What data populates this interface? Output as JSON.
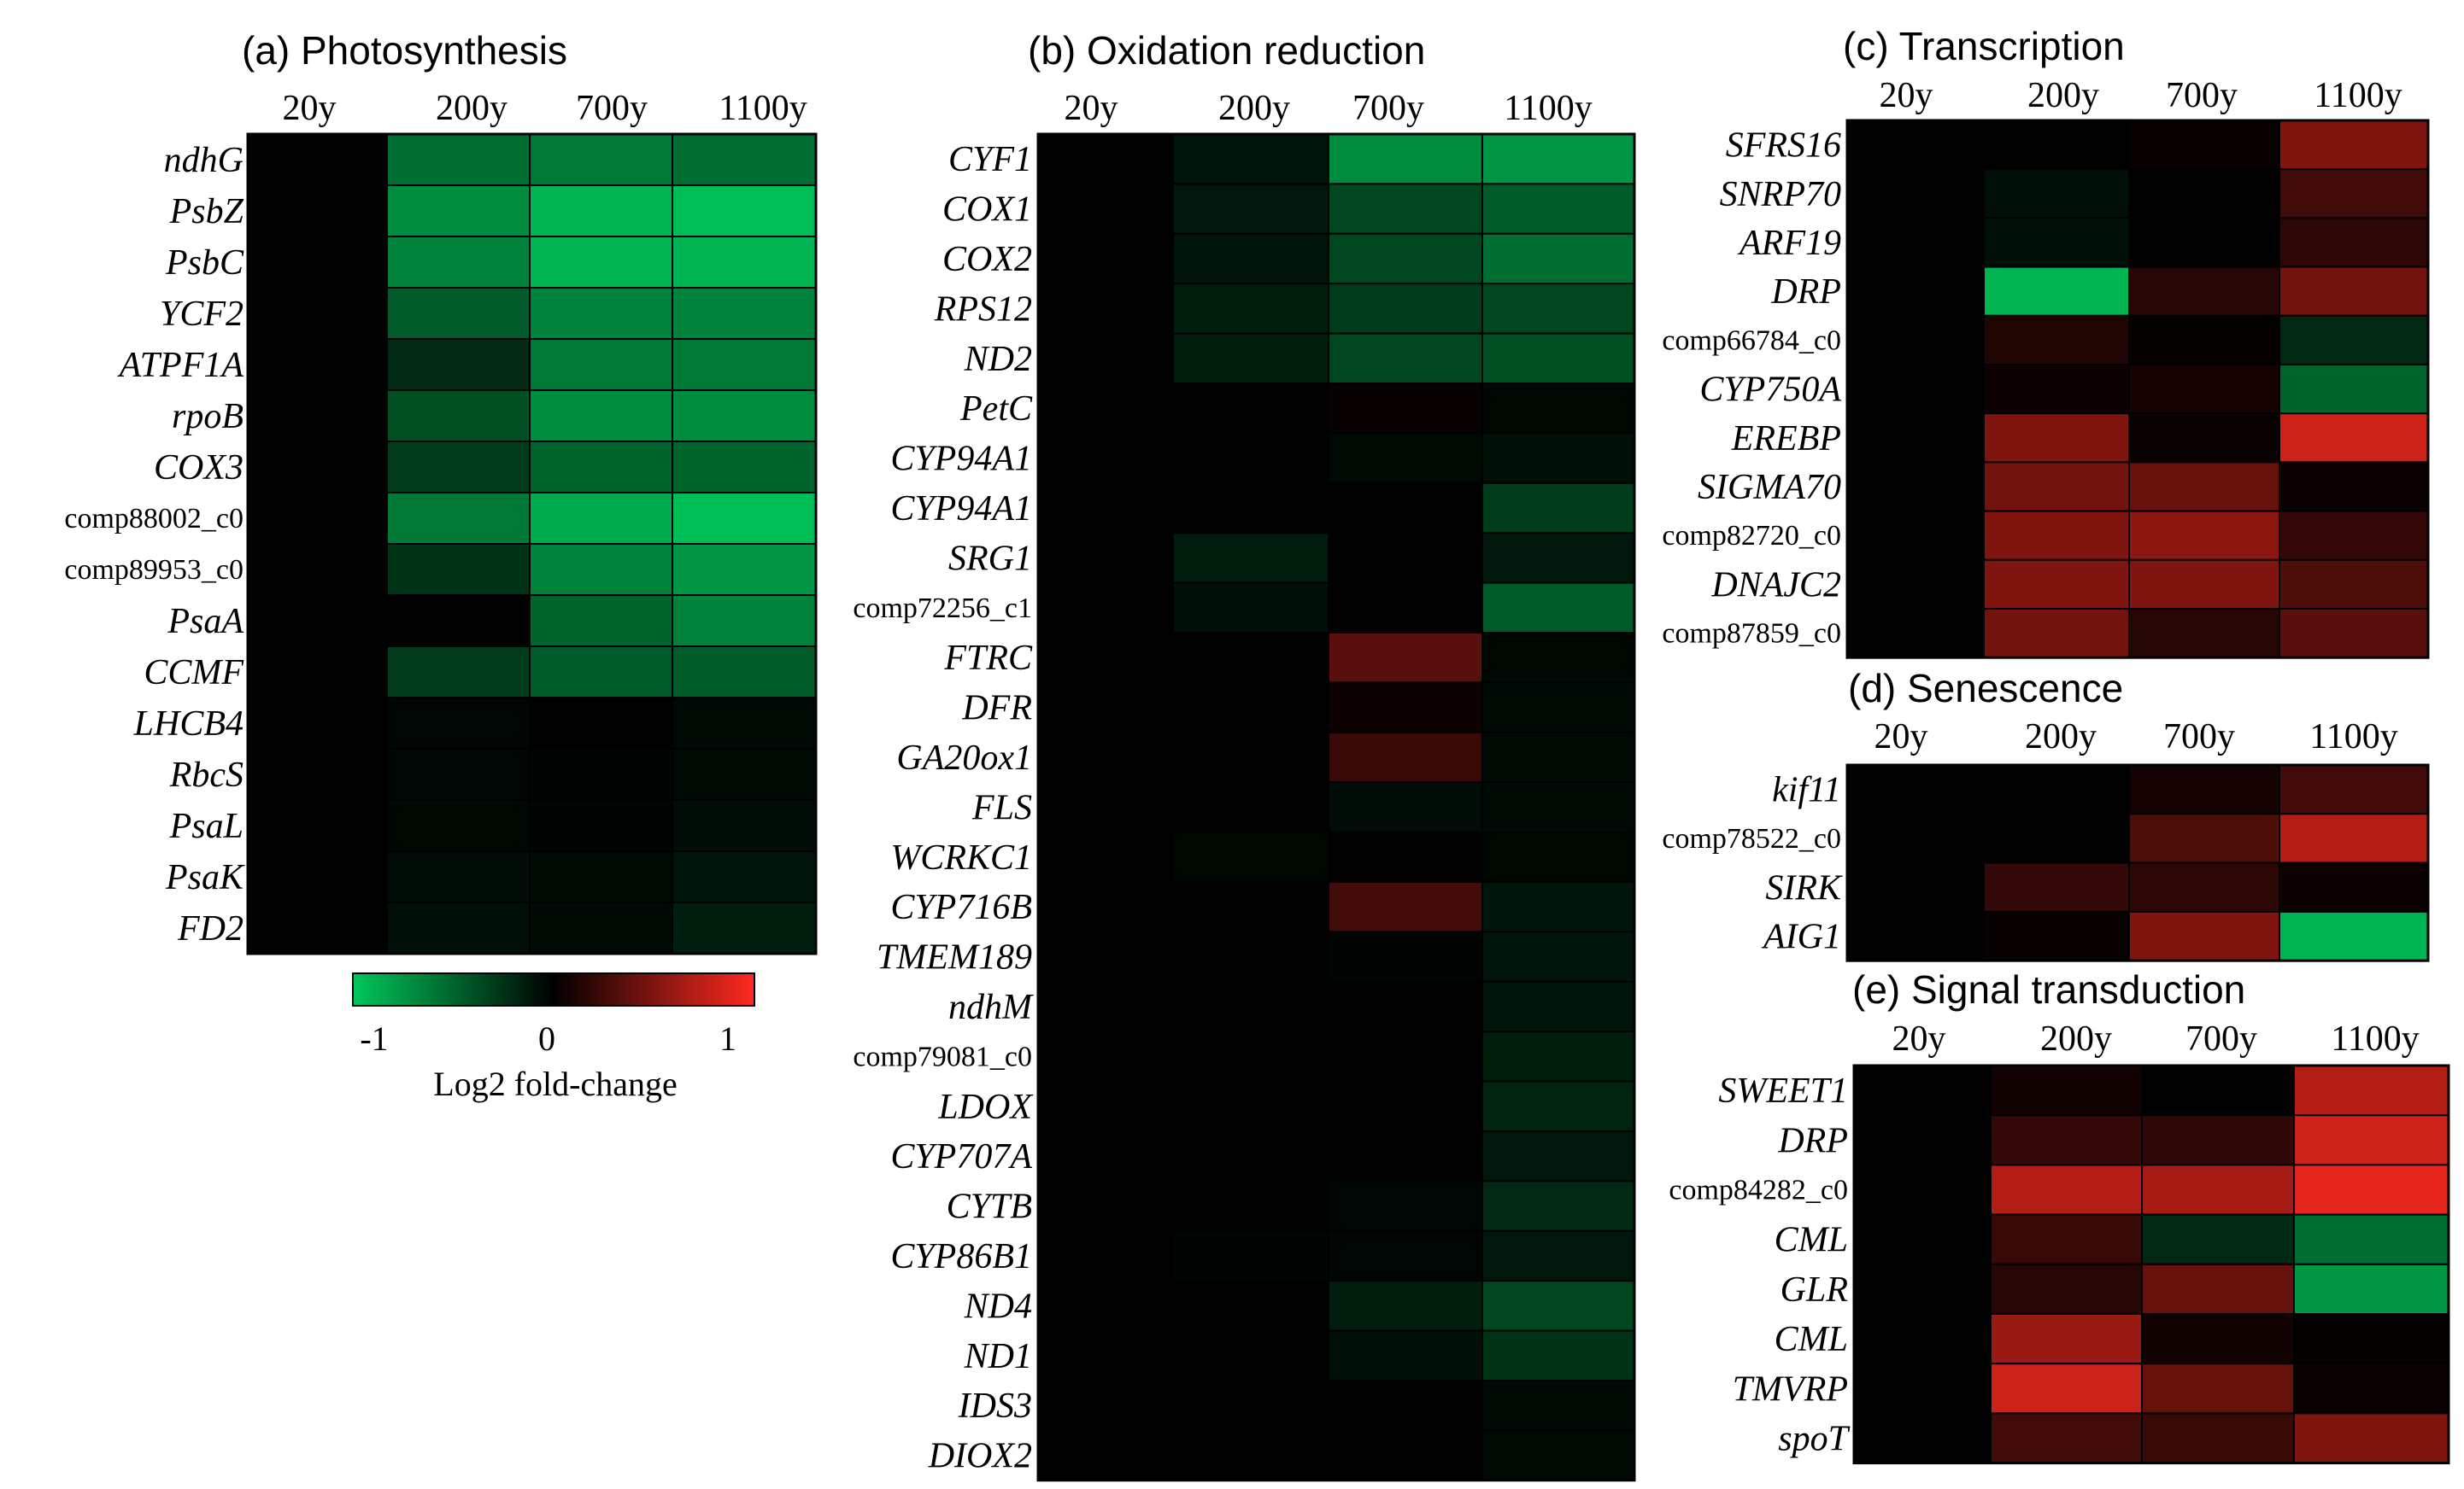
{
  "chart_data": [
    {
      "type": "heatmap",
      "title": "(a) Photosynthesis",
      "columns": [
        "20y",
        "200y",
        "700y",
        "1100y"
      ],
      "rows": [
        "ndhG",
        "PsbZ",
        "PsbC",
        "YCF2",
        "ATPF1A",
        "rpoB",
        "COX3",
        "comp88002_c0",
        "comp89953_c0",
        "PsaA",
        "CCMF",
        "LHCB4",
        "RbcS",
        "PsaL",
        "PsaK",
        "FD2"
      ],
      "values": [
        [
          0,
          -0.55,
          -0.6,
          -0.55
        ],
        [
          0,
          -0.7,
          -0.9,
          -0.95
        ],
        [
          0,
          -0.65,
          -0.9,
          -0.9
        ],
        [
          0,
          -0.45,
          -0.65,
          -0.65
        ],
        [
          0,
          -0.2,
          -0.6,
          -0.6
        ],
        [
          0,
          -0.4,
          -0.7,
          -0.7
        ],
        [
          0,
          -0.3,
          -0.5,
          -0.5
        ],
        [
          0,
          -0.6,
          -0.85,
          -0.95
        ],
        [
          0,
          -0.25,
          -0.65,
          -0.75
        ],
        [
          0,
          0,
          -0.5,
          -0.65
        ],
        [
          0,
          -0.3,
          -0.45,
          -0.45
        ],
        [
          0,
          -0.03,
          0,
          -0.05
        ],
        [
          0,
          -0.03,
          -0.02,
          -0.05
        ],
        [
          0,
          -0.04,
          -0.02,
          -0.06
        ],
        [
          0,
          -0.06,
          -0.05,
          -0.1
        ],
        [
          0,
          -0.08,
          -0.05,
          -0.15
        ]
      ]
    },
    {
      "type": "heatmap",
      "title": "(b) Oxidation reduction",
      "columns": [
        "20y",
        "200y",
        "700y",
        "1100y"
      ],
      "rows": [
        "CYF1",
        "COX1",
        "COX2",
        "RPS12",
        "ND2",
        "PetC",
        "CYP94A1",
        "CYP94A1",
        "SRG1",
        "comp72256_c1",
        "FTRC",
        "DFR",
        "GA20ox1",
        "FLS",
        "WCRKC1",
        "CYP716B",
        "TMEM189",
        "ndhM",
        "comp79081_c0",
        "LDOX",
        "CYP707A",
        "CYTB",
        "CYP86B1",
        "ND4",
        "ND1",
        "IDS3",
        "DIOX2"
      ],
      "values": [
        [
          0,
          -0.1,
          -0.7,
          -0.75
        ],
        [
          0,
          -0.12,
          -0.35,
          -0.45
        ],
        [
          0,
          -0.1,
          -0.35,
          -0.55
        ],
        [
          0,
          -0.15,
          -0.3,
          -0.35
        ],
        [
          0,
          -0.15,
          -0.35,
          -0.4
        ],
        [
          0,
          0,
          0.03,
          -0.04
        ],
        [
          0,
          0,
          -0.05,
          -0.08
        ],
        [
          0,
          0,
          0,
          -0.3
        ],
        [
          0,
          -0.15,
          0,
          -0.12
        ],
        [
          0,
          -0.08,
          0,
          -0.45
        ],
        [
          0,
          0,
          0.35,
          -0.04
        ],
        [
          0,
          0,
          0.05,
          -0.05
        ],
        [
          0,
          0,
          0.22,
          -0.05
        ],
        [
          0,
          0,
          -0.06,
          -0.05
        ],
        [
          0,
          -0.04,
          0,
          -0.04
        ],
        [
          0,
          0,
          0.25,
          -0.1
        ],
        [
          0,
          0,
          -0.02,
          -0.1
        ],
        [
          0,
          0,
          0,
          -0.1
        ],
        [
          0,
          0,
          0,
          -0.15
        ],
        [
          0,
          0,
          0,
          -0.18
        ],
        [
          0,
          0,
          0,
          -0.12
        ],
        [
          0,
          0,
          -0.03,
          -0.2
        ],
        [
          0,
          -0.02,
          -0.03,
          -0.12
        ],
        [
          0,
          0,
          -0.15,
          -0.35
        ],
        [
          0,
          0,
          -0.08,
          -0.25
        ],
        [
          0,
          0,
          0,
          -0.05
        ],
        [
          0,
          0,
          0,
          -0.05
        ]
      ]
    },
    {
      "type": "heatmap",
      "title": "(c) Transcription",
      "columns": [
        "20y",
        "200y",
        "700y",
        "1100y"
      ],
      "rows": [
        "SFRS16",
        "SNRP70",
        "ARF19",
        "DRP",
        "comp66784_c0",
        "CYP750A",
        "EREBP",
        "SIGMA70",
        "comp82720_c0",
        "DNAJC2",
        "comp87859_c0"
      ],
      "values": [
        [
          0,
          0,
          0.03,
          0.5
        ],
        [
          0,
          -0.08,
          0,
          0.25
        ],
        [
          0,
          -0.08,
          0,
          0.18
        ],
        [
          0,
          -0.9,
          0.15,
          0.45
        ],
        [
          0,
          0.12,
          0.02,
          -0.2
        ],
        [
          0,
          0.05,
          0.08,
          -0.5
        ],
        [
          0,
          0.5,
          0.04,
          0.8
        ],
        [
          0,
          0.45,
          0.4,
          0.05
        ],
        [
          0,
          0.5,
          0.55,
          0.2
        ],
        [
          0,
          0.5,
          0.5,
          0.3
        ],
        [
          0,
          0.45,
          0.15,
          0.35
        ]
      ]
    },
    {
      "type": "heatmap",
      "title": "(d) Senescence",
      "columns": [
        "20y",
        "200y",
        "700y",
        "1100y"
      ],
      "rows": [
        "kif11",
        "comp78522_c0",
        "SIRK",
        "AIG1"
      ],
      "values": [
        [
          0,
          0,
          0.08,
          0.25
        ],
        [
          0,
          0,
          0.3,
          0.7
        ],
        [
          0,
          0.2,
          0.18,
          0.05
        ],
        [
          0,
          0.03,
          0.5,
          -0.9
        ]
      ]
    },
    {
      "type": "heatmap",
      "title": "(e) Signal transduction",
      "columns": [
        "20y",
        "200y",
        "700y",
        "1100y"
      ],
      "rows": [
        "SWEET1",
        "DRP",
        "comp84282_c0",
        "CML",
        "GLR",
        "CML",
        "TMVRP",
        "spoT"
      ],
      "values": [
        [
          0,
          0.07,
          0,
          0.7
        ],
        [
          0,
          0.2,
          0.18,
          0.8
        ],
        [
          0,
          0.7,
          0.65,
          0.9
        ],
        [
          0,
          0.22,
          -0.2,
          -0.55
        ],
        [
          0,
          0.15,
          0.4,
          -0.75
        ],
        [
          0,
          0.6,
          0.07,
          0.02
        ],
        [
          0,
          0.8,
          0.4,
          0.04
        ],
        [
          0,
          0.25,
          0.22,
          0.5
        ]
      ]
    }
  ],
  "legend": {
    "label": "Log2 fold-change",
    "ticks": [
      "-1",
      "0",
      "1"
    ],
    "min": -1,
    "max": 1,
    "low_color": "#00c85a",
    "mid_color": "#000000",
    "high_color": "#ff2a1f"
  }
}
